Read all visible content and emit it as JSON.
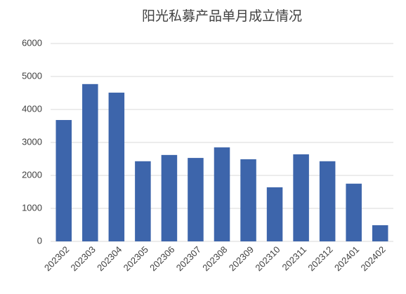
{
  "chart_data": {
    "type": "bar",
    "title": "阳光私募产品单月成立情况",
    "categories": [
      "202302",
      "202303",
      "202304",
      "202305",
      "202306",
      "202307",
      "202308",
      "202309",
      "202310",
      "202311",
      "202312",
      "202401",
      "202402"
    ],
    "values": [
      3680,
      4770,
      4510,
      2430,
      2620,
      2530,
      2850,
      2490,
      1640,
      2640,
      2430,
      1750,
      490
    ],
    "color": "#3d65ab",
    "ylim": [
      0,
      6000
    ],
    "yticks": [
      0,
      1000,
      2000,
      3000,
      4000,
      5000,
      6000
    ],
    "grid": true
  }
}
